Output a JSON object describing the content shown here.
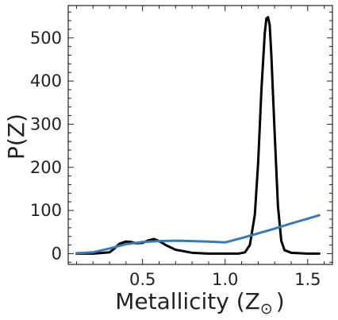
{
  "chart_data": {
    "type": "line",
    "xlabel": "Metallicity (Z",
    "xlabel_symbol": "⊙",
    "xlabel_close": ")",
    "ylabel": "P(Z)",
    "xlim": [
      0.05,
      1.65
    ],
    "ylim": [
      -25,
      575
    ],
    "xticks": [
      0.5,
      1.0,
      1.5
    ],
    "xtick_labels": [
      "0.5",
      "1.0",
      "1.5"
    ],
    "yticks": [
      0,
      100,
      200,
      300,
      400,
      500
    ],
    "ytick_labels": [
      "0",
      "100",
      "200",
      "300",
      "400",
      "500"
    ],
    "grid": false,
    "legend": false,
    "series": [
      {
        "color": "#000000",
        "x": [
          0.1,
          0.2,
          0.3,
          0.33,
          0.36,
          0.4,
          0.43,
          0.46,
          0.5,
          0.53,
          0.57,
          0.6,
          0.65,
          0.7,
          0.8,
          0.9,
          1.0,
          1.08,
          1.12,
          1.15,
          1.18,
          1.2,
          1.22,
          1.24,
          1.25,
          1.26,
          1.27,
          1.28,
          1.3,
          1.32,
          1.34,
          1.36,
          1.4,
          1.5,
          1.57
        ],
        "y": [
          0,
          0,
          3,
          12,
          23,
          28,
          27,
          24,
          25,
          30,
          34,
          29,
          18,
          9,
          2,
          0,
          0,
          0,
          3,
          20,
          90,
          210,
          380,
          510,
          545,
          548,
          530,
          460,
          280,
          110,
          30,
          8,
          2,
          0,
          0
        ]
      },
      {
        "color": "#3a7ab3",
        "x": [
          0.1,
          0.2,
          0.3,
          0.4,
          0.5,
          0.6,
          0.7,
          0.8,
          0.9,
          1.0,
          1.1,
          1.2,
          1.3,
          1.4,
          1.5,
          1.57
        ],
        "y": [
          1,
          3,
          12,
          22,
          27,
          29,
          30,
          29,
          28,
          26,
          36,
          47,
          58,
          70,
          81,
          89
        ]
      }
    ]
  }
}
